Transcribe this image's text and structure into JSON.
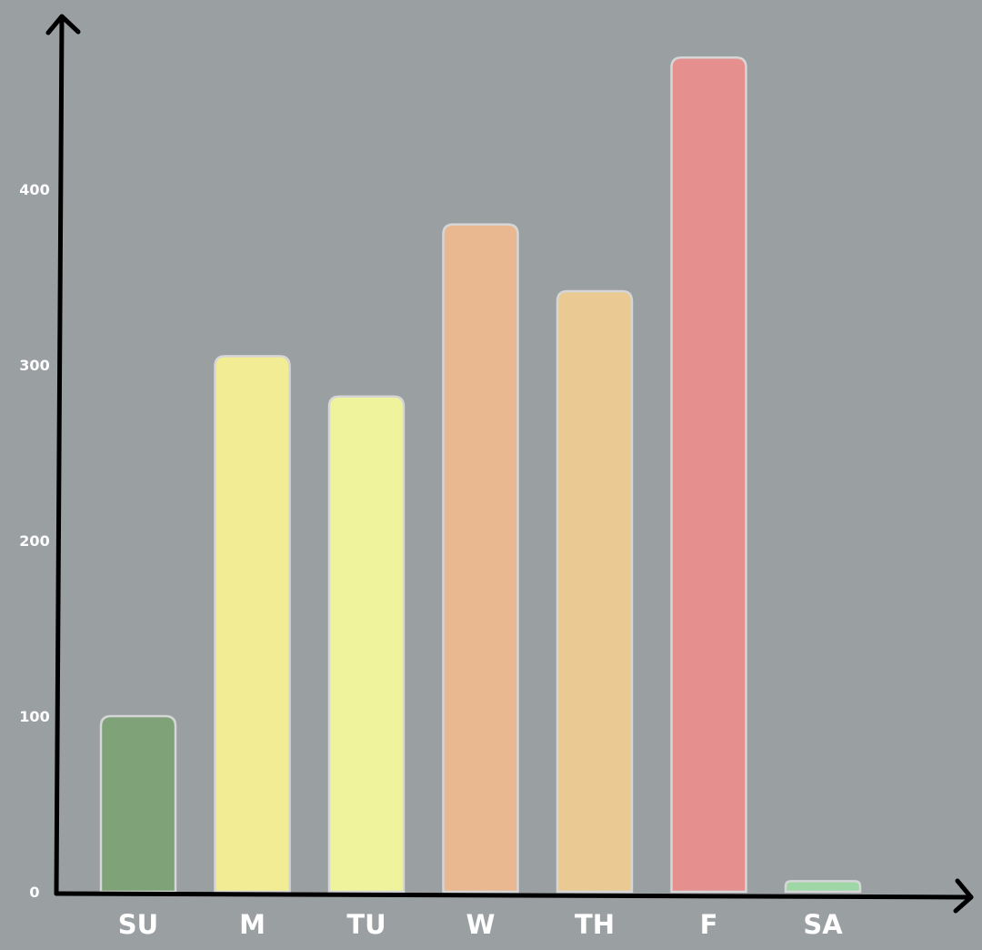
{
  "chart_data": {
    "type": "bar",
    "categories": [
      "SU",
      "M",
      "TU",
      "W",
      "TH",
      "F",
      "SA"
    ],
    "values": [
      100,
      305,
      282,
      380,
      342,
      475,
      6
    ],
    "colors": [
      "#7fa278",
      "#f2ec94",
      "#eff39b",
      "#e9b891",
      "#eaca92",
      "#e58f8f",
      "#9ed6a5"
    ],
    "yticks": [
      0,
      100,
      200,
      300,
      400
    ],
    "ylim": [
      0,
      500
    ],
    "grid": false,
    "legend": "none",
    "bar_border_color": "#d6d6d6",
    "axis_color": "#000000",
    "label_color": "#ffffff",
    "background_color": "#9a9fa2"
  }
}
